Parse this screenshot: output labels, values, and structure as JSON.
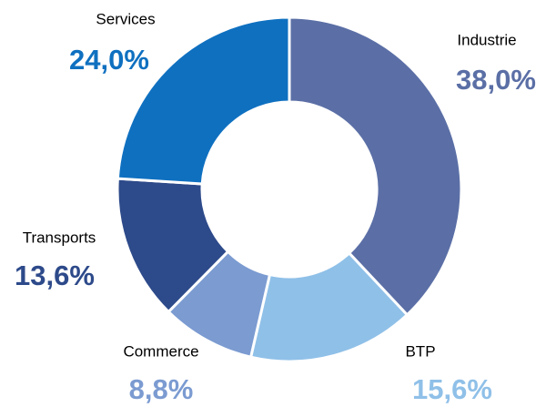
{
  "chart_data": {
    "type": "donut",
    "categories": [
      "Industrie",
      "BTP",
      "Commerce",
      "Transports",
      "Services"
    ],
    "values": [
      38.0,
      15.6,
      8.8,
      13.6,
      24.0
    ],
    "value_labels": [
      "38,0%",
      "15,6%",
      "8,8%",
      "13,6%",
      "24,0%"
    ],
    "colors": [
      "#5b6fa6",
      "#8fc0e8",
      "#7b9bd1",
      "#2d4a8a",
      "#0f70c0"
    ]
  }
}
